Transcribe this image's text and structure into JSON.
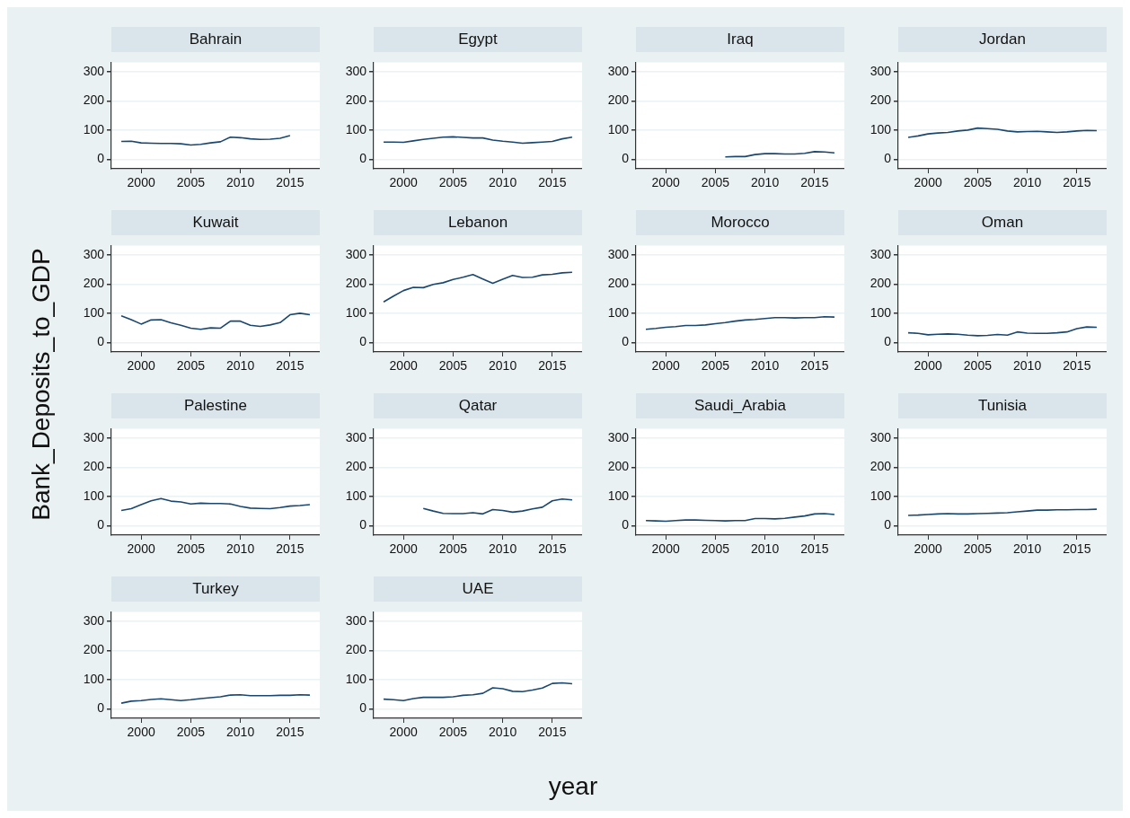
{
  "chart_data": [
    {
      "type": "line",
      "title": "Bahrain",
      "ylabel": "Bank_Deposits_to_GDP",
      "x": [
        1998,
        1999,
        2000,
        2001,
        2002,
        2003,
        2004,
        2005,
        2006,
        2007,
        2008,
        2009,
        2010,
        2011,
        2012,
        2013,
        2014,
        2015
      ],
      "series": [
        {
          "color": "#1a476f",
          "values": [
            61,
            62,
            56,
            55,
            54,
            54,
            53,
            49,
            51,
            56,
            60,
            76,
            74,
            70,
            68,
            69,
            72,
            81
          ]
        }
      ],
      "xlim": [
        1997,
        2018
      ],
      "xticks": [
        2000,
        2005,
        2010,
        2015
      ],
      "ylim": [
        -33,
        333
      ],
      "yticks": [
        0,
        100,
        200,
        300
      ],
      "grid": "y",
      "marker": "none"
    },
    {
      "type": "line",
      "title": "Egypt",
      "x": [
        1998,
        1999,
        2000,
        2001,
        2002,
        2003,
        2004,
        2005,
        2006,
        2007,
        2008,
        2009,
        2010,
        2011,
        2012,
        2013,
        2014,
        2015,
        2016,
        2017
      ],
      "series": [
        {
          "color": "#1a476f",
          "values": [
            59,
            59,
            58,
            63,
            68,
            72,
            76,
            77,
            75,
            73,
            73,
            66,
            62,
            59,
            55,
            57,
            59,
            61,
            70,
            76
          ]
        }
      ],
      "xlim": [
        1997,
        2018
      ],
      "xticks": [
        2000,
        2005,
        2010,
        2015
      ],
      "ylim": [
        -33,
        333
      ],
      "yticks": [
        0,
        100,
        200,
        300
      ],
      "grid": "y",
      "marker": "none"
    },
    {
      "type": "line",
      "title": "Iraq",
      "x": [
        2006,
        2007,
        2008,
        2009,
        2010,
        2011,
        2012,
        2013,
        2014,
        2015,
        2016,
        2017
      ],
      "series": [
        {
          "color": "#1a476f",
          "values": [
            8,
            9,
            9,
            16,
            19,
            19,
            18,
            18,
            20,
            26,
            25,
            22
          ]
        }
      ],
      "xlim": [
        1997,
        2018
      ],
      "xticks": [
        2000,
        2005,
        2010,
        2015
      ],
      "ylim": [
        -33,
        333
      ],
      "yticks": [
        0,
        100,
        200,
        300
      ],
      "grid": "y",
      "marker": "none"
    },
    {
      "type": "line",
      "title": "Jordan",
      "x": [
        1998,
        1999,
        2000,
        2001,
        2002,
        2003,
        2004,
        2005,
        2006,
        2007,
        2008,
        2009,
        2010,
        2011,
        2012,
        2013,
        2014,
        2015,
        2016,
        2017
      ],
      "series": [
        {
          "color": "#1a476f",
          "values": [
            75,
            80,
            87,
            90,
            92,
            97,
            100,
            107,
            105,
            103,
            97,
            94,
            95,
            96,
            94,
            92,
            94,
            97,
            99,
            98
          ]
        }
      ],
      "xlim": [
        1997,
        2018
      ],
      "xticks": [
        2000,
        2005,
        2010,
        2015
      ],
      "ylim": [
        -33,
        333
      ],
      "yticks": [
        0,
        100,
        200,
        300
      ],
      "grid": "y",
      "marker": "none"
    },
    {
      "type": "line",
      "title": "Kuwait",
      "x": [
        1998,
        1999,
        2000,
        2001,
        2002,
        2003,
        2004,
        2005,
        2006,
        2007,
        2008,
        2009,
        2010,
        2011,
        2012,
        2013,
        2014,
        2015,
        2016,
        2017
      ],
      "series": [
        {
          "color": "#1a476f",
          "values": [
            91,
            78,
            63,
            77,
            78,
            67,
            59,
            49,
            45,
            50,
            49,
            73,
            73,
            59,
            55,
            60,
            68,
            95,
            100,
            95
          ]
        }
      ],
      "xlim": [
        1997,
        2018
      ],
      "xticks": [
        2000,
        2005,
        2010,
        2015
      ],
      "ylim": [
        -33,
        333
      ],
      "yticks": [
        0,
        100,
        200,
        300
      ],
      "grid": "y",
      "marker": "none"
    },
    {
      "type": "line",
      "title": "Lebanon",
      "x": [
        1998,
        1999,
        2000,
        2001,
        2002,
        2003,
        2004,
        2005,
        2006,
        2007,
        2008,
        2009,
        2010,
        2011,
        2012,
        2013,
        2014,
        2015,
        2016,
        2017
      ],
      "series": [
        {
          "color": "#1a476f",
          "values": [
            139,
            159,
            178,
            189,
            188,
            199,
            205,
            216,
            224,
            233,
            218,
            203,
            217,
            230,
            223,
            224,
            232,
            234,
            239,
            241
          ]
        }
      ],
      "xlim": [
        1997,
        2018
      ],
      "xticks": [
        2000,
        2005,
        2010,
        2015
      ],
      "ylim": [
        -33,
        333
      ],
      "yticks": [
        0,
        100,
        200,
        300
      ],
      "grid": "y",
      "marker": "none"
    },
    {
      "type": "line",
      "title": "Morocco",
      "x": [
        1998,
        1999,
        2000,
        2001,
        2002,
        2003,
        2004,
        2005,
        2006,
        2007,
        2008,
        2009,
        2010,
        2011,
        2012,
        2013,
        2014,
        2015,
        2016,
        2017
      ],
      "series": [
        {
          "color": "#1a476f",
          "values": [
            45,
            48,
            52,
            54,
            58,
            58,
            60,
            64,
            68,
            73,
            77,
            79,
            82,
            85,
            85,
            84,
            85,
            85,
            88,
            87
          ]
        }
      ],
      "xlim": [
        1997,
        2018
      ],
      "xticks": [
        2000,
        2005,
        2010,
        2015
      ],
      "ylim": [
        -33,
        333
      ],
      "yticks": [
        0,
        100,
        200,
        300
      ],
      "grid": "y",
      "marker": "none"
    },
    {
      "type": "line",
      "title": "Oman",
      "x": [
        1998,
        1999,
        2000,
        2001,
        2002,
        2003,
        2004,
        2005,
        2006,
        2007,
        2008,
        2009,
        2010,
        2011,
        2012,
        2013,
        2014,
        2015,
        2016,
        2017
      ],
      "series": [
        {
          "color": "#1a476f",
          "values": [
            33,
            31,
            26,
            28,
            29,
            28,
            25,
            23,
            24,
            27,
            25,
            36,
            32,
            31,
            31,
            33,
            36,
            47,
            53,
            52
          ]
        }
      ],
      "xlim": [
        1997,
        2018
      ],
      "xticks": [
        2000,
        2005,
        2010,
        2015
      ],
      "ylim": [
        -33,
        333
      ],
      "yticks": [
        0,
        100,
        200,
        300
      ],
      "grid": "y",
      "marker": "none"
    },
    {
      "type": "line",
      "title": "Palestine",
      "x": [
        1998,
        1999,
        2000,
        2001,
        2002,
        2003,
        2004,
        2005,
        2006,
        2007,
        2008,
        2009,
        2010,
        2011,
        2012,
        2013,
        2014,
        2015,
        2016,
        2017
      ],
      "series": [
        {
          "color": "#1a476f",
          "values": [
            52,
            58,
            72,
            85,
            93,
            84,
            81,
            74,
            77,
            76,
            76,
            74,
            66,
            60,
            59,
            58,
            62,
            67,
            69,
            72
          ]
        }
      ],
      "xlim": [
        1997,
        2018
      ],
      "xticks": [
        2000,
        2005,
        2010,
        2015
      ],
      "ylim": [
        -33,
        333
      ],
      "yticks": [
        0,
        100,
        200,
        300
      ],
      "grid": "y",
      "marker": "none"
    },
    {
      "type": "line",
      "title": "Qatar",
      "x": [
        2002,
        2003,
        2004,
        2005,
        2006,
        2007,
        2008,
        2009,
        2010,
        2011,
        2012,
        2013,
        2014,
        2015,
        2016,
        2017
      ],
      "series": [
        {
          "color": "#1a476f",
          "values": [
            59,
            50,
            42,
            41,
            41,
            44,
            40,
            55,
            52,
            46,
            50,
            57,
            63,
            85,
            91,
            88
          ]
        }
      ],
      "xlim": [
        1997,
        2018
      ],
      "xticks": [
        2000,
        2005,
        2010,
        2015
      ],
      "ylim": [
        -33,
        333
      ],
      "yticks": [
        0,
        100,
        200,
        300
      ],
      "grid": "y",
      "marker": "none"
    },
    {
      "type": "line",
      "title": "Saudi_Arabia",
      "x": [
        1998,
        1999,
        2000,
        2001,
        2002,
        2003,
        2004,
        2005,
        2006,
        2007,
        2008,
        2009,
        2010,
        2011,
        2012,
        2013,
        2014,
        2015,
        2016,
        2017
      ],
      "series": [
        {
          "color": "#1a476f",
          "values": [
            17,
            16,
            15,
            17,
            19,
            19,
            18,
            17,
            16,
            17,
            17,
            24,
            24,
            23,
            25,
            29,
            33,
            40,
            41,
            38
          ]
        }
      ],
      "xlim": [
        1997,
        2018
      ],
      "xticks": [
        2000,
        2005,
        2010,
        2015
      ],
      "ylim": [
        -33,
        333
      ],
      "yticks": [
        0,
        100,
        200,
        300
      ],
      "grid": "y",
      "marker": "none"
    },
    {
      "type": "line",
      "title": "Tunisia",
      "x": [
        1998,
        1999,
        2000,
        2001,
        2002,
        2003,
        2004,
        2005,
        2006,
        2007,
        2008,
        2009,
        2010,
        2011,
        2012,
        2013,
        2014,
        2015,
        2016,
        2017
      ],
      "series": [
        {
          "color": "#1a476f",
          "values": [
            35,
            36,
            38,
            40,
            41,
            40,
            40,
            41,
            42,
            43,
            44,
            47,
            50,
            53,
            53,
            54,
            54,
            55,
            55,
            56
          ]
        }
      ],
      "xlim": [
        1997,
        2018
      ],
      "xticks": [
        2000,
        2005,
        2010,
        2015
      ],
      "ylim": [
        -33,
        333
      ],
      "yticks": [
        0,
        100,
        200,
        300
      ],
      "grid": "y",
      "marker": "none"
    },
    {
      "type": "line",
      "title": "Turkey",
      "x": [
        1998,
        1999,
        2000,
        2001,
        2002,
        2003,
        2004,
        2005,
        2006,
        2007,
        2008,
        2009,
        2010,
        2011,
        2012,
        2013,
        2014,
        2015,
        2016,
        2017
      ],
      "series": [
        {
          "color": "#1a476f",
          "values": [
            19,
            26,
            28,
            32,
            34,
            31,
            28,
            31,
            35,
            38,
            41,
            47,
            48,
            45,
            45,
            45,
            46,
            46,
            48,
            47
          ]
        }
      ],
      "xlim": [
        1997,
        2018
      ],
      "xticks": [
        2000,
        2005,
        2010,
        2015
      ],
      "ylim": [
        -33,
        333
      ],
      "yticks": [
        0,
        100,
        200,
        300
      ],
      "grid": "y",
      "marker": "none"
    },
    {
      "type": "line",
      "title": "UAE",
      "xlabel": "year",
      "x": [
        1998,
        1999,
        2000,
        2001,
        2002,
        2003,
        2004,
        2005,
        2006,
        2007,
        2008,
        2009,
        2010,
        2011,
        2012,
        2013,
        2014,
        2015,
        2016,
        2017
      ],
      "series": [
        {
          "color": "#1a476f",
          "values": [
            33,
            31,
            28,
            35,
            39,
            39,
            39,
            41,
            46,
            48,
            53,
            72,
            69,
            60,
            59,
            64,
            71,
            87,
            89,
            86
          ]
        }
      ],
      "xlim": [
        1997,
        2018
      ],
      "xticks": [
        2000,
        2005,
        2010,
        2015
      ],
      "ylim": [
        -33,
        333
      ],
      "yticks": [
        0,
        100,
        200,
        300
      ],
      "grid": "y",
      "marker": "none"
    }
  ]
}
